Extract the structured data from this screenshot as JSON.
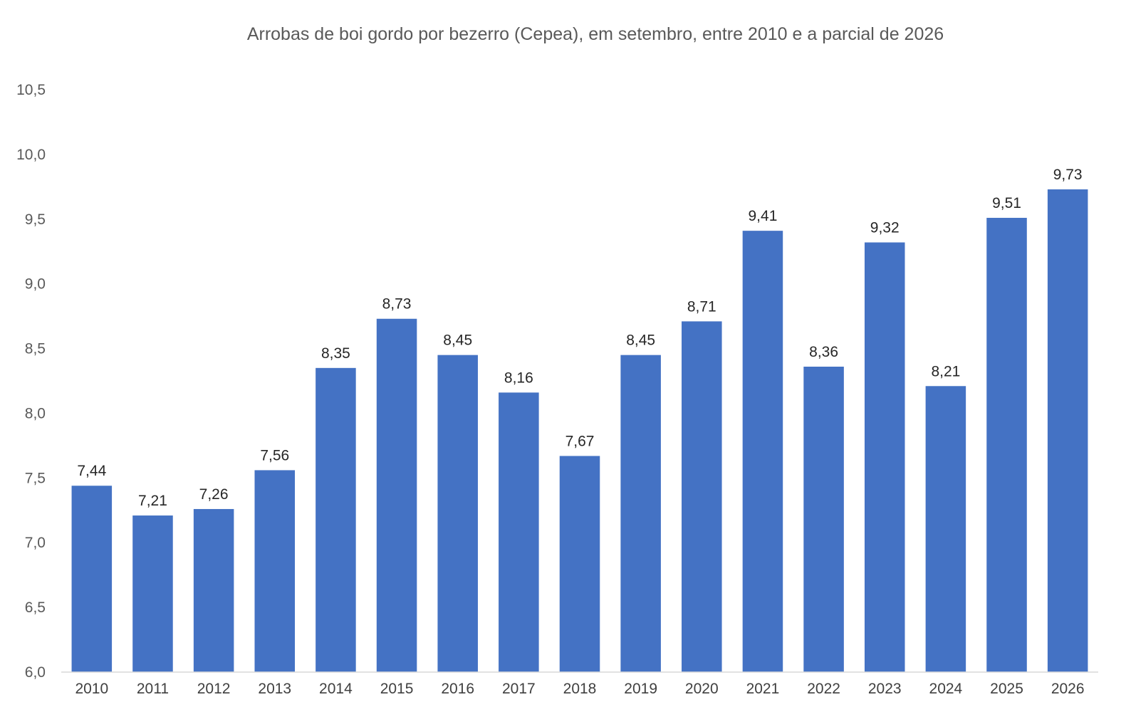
{
  "chart_data": {
    "type": "bar",
    "title": "Arrobas de boi gordo por bezerro (Cepea), em setembro, entre 2010 e a parcial de 2026",
    "xlabel": "",
    "ylabel": "",
    "categories": [
      "2010",
      "2011",
      "2012",
      "2013",
      "2014",
      "2015",
      "2016",
      "2017",
      "2018",
      "2019",
      "2020",
      "2021",
      "2022",
      "2023",
      "2024",
      "2025",
      "2026"
    ],
    "values": [
      7.44,
      7.21,
      7.26,
      7.56,
      8.35,
      8.73,
      8.45,
      8.16,
      7.67,
      8.45,
      8.71,
      9.41,
      8.36,
      9.32,
      8.21,
      9.51,
      9.73
    ],
    "value_labels": [
      "7,44",
      "7,21",
      "7,26",
      "7,56",
      "8,35",
      "8,73",
      "8,45",
      "8,16",
      "7,67",
      "8,45",
      "8,71",
      "9,41",
      "8,36",
      "9,32",
      "8,21",
      "9,51",
      "9,73"
    ],
    "yticks": [
      6.0,
      6.5,
      7.0,
      7.5,
      8.0,
      8.5,
      9.0,
      9.5,
      10.0,
      10.5
    ],
    "ytick_labels": [
      "6,0",
      "6,5",
      "7,0",
      "7,5",
      "8,0",
      "8,5",
      "9,0",
      "9,5",
      "10,0",
      "10,5"
    ],
    "ylim": [
      6.0,
      10.5
    ],
    "grid": false,
    "legend": "none",
    "bar_color": "#4472C4"
  }
}
